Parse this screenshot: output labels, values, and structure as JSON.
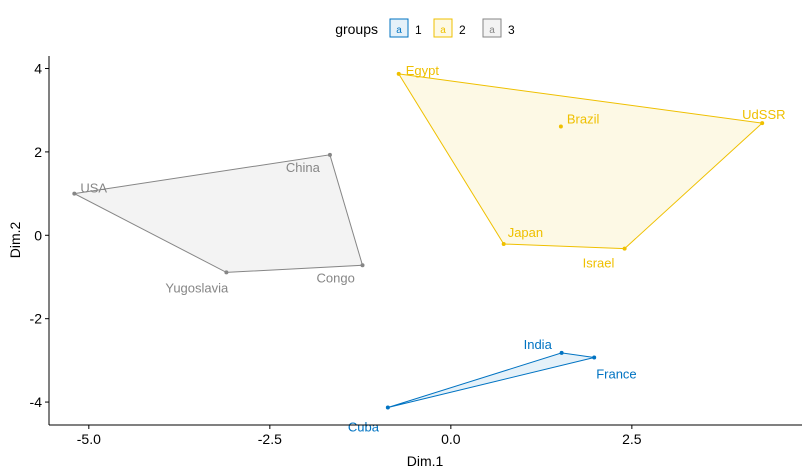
{
  "chart_data": {
    "type": "scatter",
    "xlabel": "Dim.1",
    "ylabel": "Dim.2",
    "xlim": [
      -5.55,
      4.85
    ],
    "ylim": [
      -4.55,
      4.3
    ],
    "x_ticks": [
      -5.0,
      -2.5,
      0.0,
      2.5
    ],
    "x_tick_labels": [
      "-5.0",
      "-2.5",
      "0.0",
      "2.5"
    ],
    "y_ticks": [
      -4,
      -2,
      0,
      2,
      4
    ],
    "y_tick_labels": [
      "-4",
      "-2",
      "0",
      "2",
      "4"
    ],
    "grid": false,
    "legend": {
      "title": "groups",
      "position": "top",
      "entries": [
        "1",
        "2",
        "3"
      ],
      "key_glyph": "a"
    },
    "series": [
      {
        "name": "1",
        "color": "#0073C2",
        "points": [
          {
            "label": "Cuba",
            "x": -0.87,
            "y": -4.13
          },
          {
            "label": "India",
            "x": 1.53,
            "y": -2.82
          },
          {
            "label": "France",
            "x": 1.98,
            "y": -2.93
          }
        ],
        "hull": [
          "Cuba",
          "India",
          "France"
        ]
      },
      {
        "name": "2",
        "color": "#EFC000",
        "points": [
          {
            "label": "Egypt",
            "x": -0.72,
            "y": 3.87
          },
          {
            "label": "Brazil",
            "x": 1.52,
            "y": 2.61
          },
          {
            "label": "UdSSR",
            "x": 4.3,
            "y": 2.69
          },
          {
            "label": "Japan",
            "x": 0.73,
            "y": -0.21
          },
          {
            "label": "Israel",
            "x": 2.4,
            "y": -0.32
          }
        ],
        "hull": [
          "Egypt",
          "UdSSR",
          "Israel",
          "Japan"
        ]
      },
      {
        "name": "3",
        "color": "#868686",
        "points": [
          {
            "label": "USA",
            "x": -5.2,
            "y": 1.0
          },
          {
            "label": "China",
            "x": -1.67,
            "y": 1.93
          },
          {
            "label": "Congo",
            "x": -1.22,
            "y": -0.72
          },
          {
            "label": "Yugoslavia",
            "x": -3.1,
            "y": -0.89
          }
        ],
        "hull": [
          "USA",
          "China",
          "Congo",
          "Yugoslavia"
        ]
      }
    ]
  }
}
